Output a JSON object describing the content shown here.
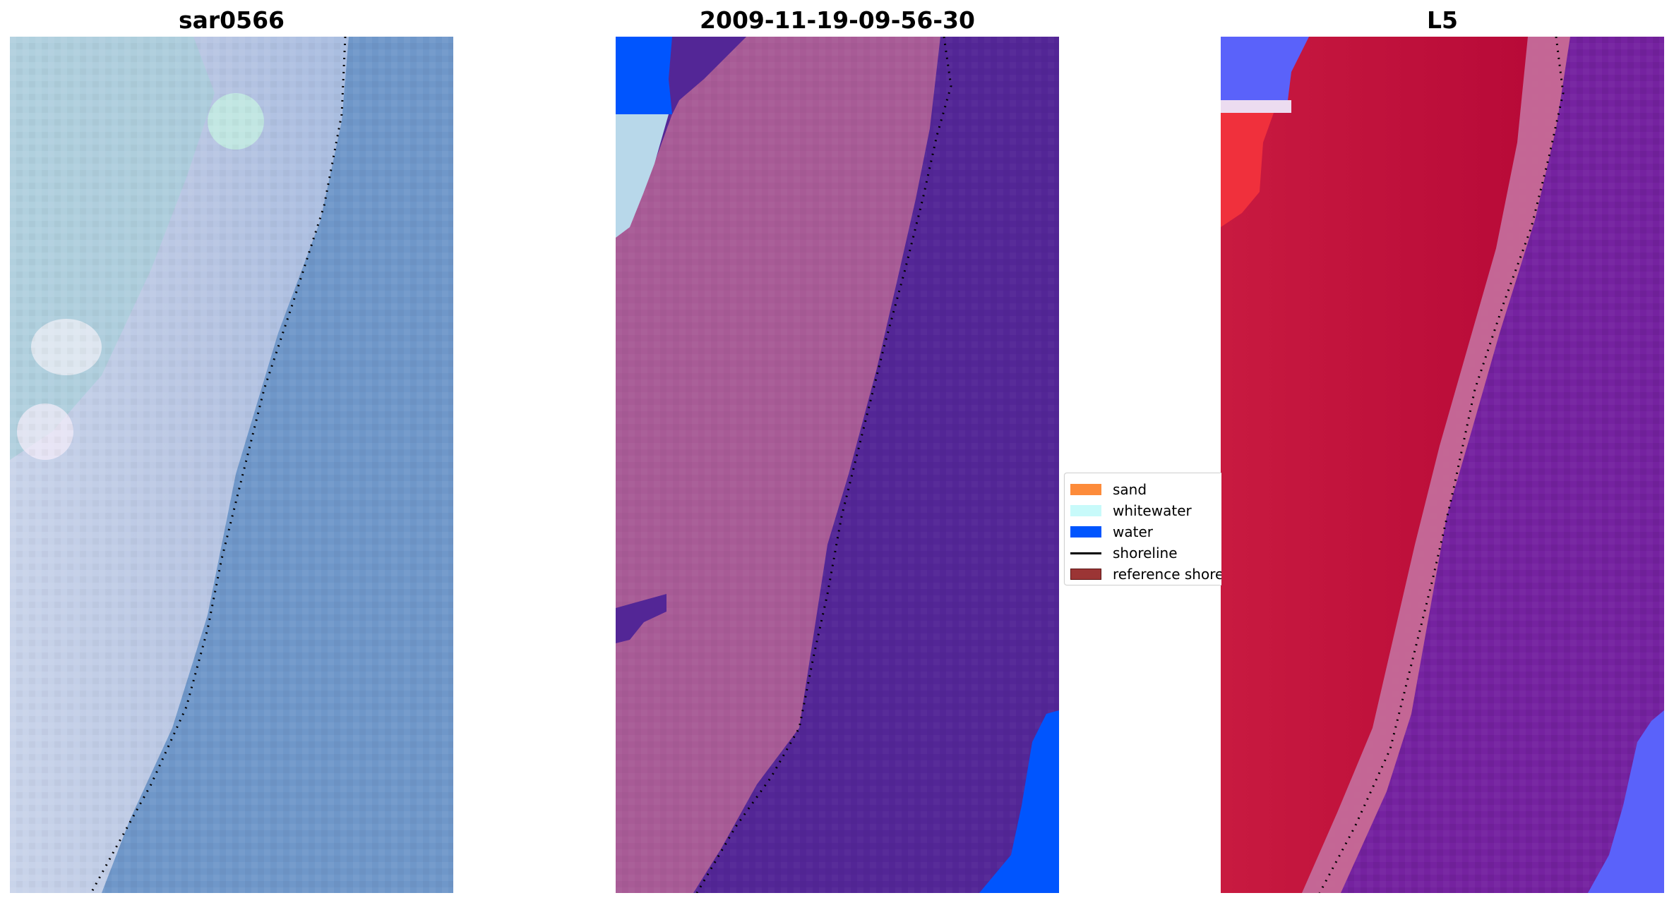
{
  "panels": [
    {
      "title": "sar0566"
    },
    {
      "title": "2009-11-19-09-56-30"
    },
    {
      "title": "L5"
    }
  ],
  "legend": {
    "items": [
      {
        "label": "sand",
        "type": "patch",
        "color": "#fd8b3a"
      },
      {
        "label": "whitewater",
        "type": "patch",
        "color": "#c8fafa"
      },
      {
        "label": "water",
        "type": "patch",
        "color": "#0055fe"
      },
      {
        "label": "shoreline",
        "type": "line",
        "color": "#000000"
      },
      {
        "label": "reference shoreline",
        "type": "patch",
        "color": "#9b3535"
      }
    ]
  },
  "colors": {
    "rgb_beach": "#c9cde6",
    "rgb_sea": "#6b93c8",
    "class_land": "#a85b96",
    "class_sea": "#532696",
    "class_water": "#0055fe",
    "class_whitewater": "#b8d8ea",
    "index_land": "#c10a36",
    "index_sea": "#7422a0",
    "index_water": "#5a62fa"
  }
}
